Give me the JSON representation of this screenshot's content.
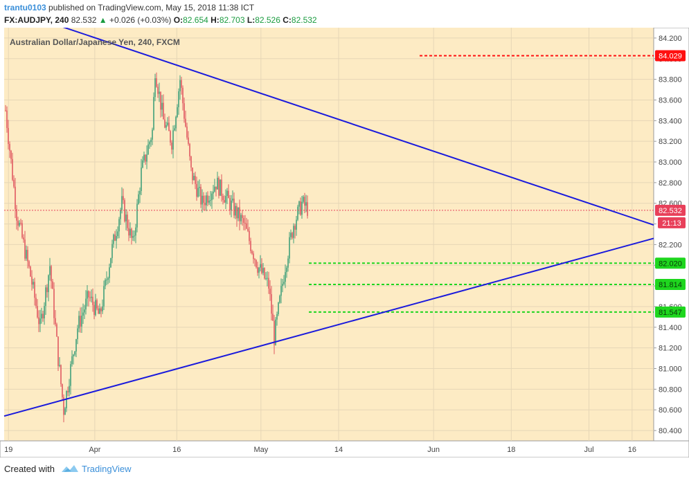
{
  "header": {
    "author": "trantu0103",
    "published_text": "published on TradingView.com, May 15, 2018 11:38 ICT",
    "symbol": "FX:AUDJPY, 240",
    "last": "82.532",
    "change": "+0.026 (+0.03%)",
    "o_label": "O:",
    "o_value": "82.654",
    "h_label": "H:",
    "h_value": "82.703",
    "l_label": "L:",
    "l_value": "82.526",
    "c_label": "C:",
    "c_value": "82.532"
  },
  "chart_data": {
    "type": "candlestick",
    "title": "Australian Dollar/Japanese Yen, 240, FXCM",
    "ylim": [
      80.3,
      84.3
    ],
    "y_ticks": [
      "80.400",
      "80.600",
      "80.800",
      "81.000",
      "81.200",
      "81.400",
      "81.600",
      "81.800",
      "82.000",
      "82.200",
      "82.400",
      "82.600",
      "82.800",
      "83.000",
      "83.200",
      "83.400",
      "83.600",
      "83.800",
      "84.000",
      "84.200"
    ],
    "x_ticks": [
      "19",
      "Apr",
      "16",
      "May",
      "14",
      "Jun",
      "18",
      "Jul",
      "16"
    ],
    "candle_path_points": [
      [
        0,
        83.5
      ],
      [
        8,
        82.5
      ],
      [
        18,
        81.9
      ],
      [
        25,
        81.4
      ],
      [
        32,
        82.0
      ],
      [
        38,
        81.1
      ],
      [
        42,
        80.6
      ],
      [
        52,
        81.4
      ],
      [
        60,
        81.7
      ],
      [
        68,
        81.5
      ],
      [
        76,
        82.1
      ],
      [
        84,
        82.6
      ],
      [
        92,
        82.2
      ],
      [
        98,
        82.9
      ],
      [
        106,
        83.3
      ],
      [
        108,
        83.9
      ],
      [
        114,
        83.4
      ],
      [
        120,
        83.2
      ],
      [
        126,
        83.8
      ],
      [
        134,
        82.9
      ],
      [
        142,
        82.6
      ],
      [
        152,
        82.8
      ],
      [
        162,
        82.6
      ],
      [
        172,
        82.4
      ],
      [
        182,
        82.0
      ],
      [
        190,
        81.8
      ],
      [
        194,
        81.3
      ],
      [
        202,
        82.0
      ],
      [
        208,
        82.4
      ],
      [
        214,
        82.6
      ],
      [
        218,
        82.55
      ]
    ],
    "series": [
      {
        "name": "current_price",
        "value": 82.532,
        "label": "82.532",
        "color": "#e8405a"
      },
      {
        "name": "countdown",
        "label": "21:13",
        "color": "#e8405a"
      },
      {
        "name": "resistance",
        "value": 84.029,
        "label": "84.029",
        "color": "#ff1010"
      },
      {
        "name": "support_1",
        "value": 82.02,
        "label": "82.020",
        "color": "#1ed61e"
      },
      {
        "name": "support_2",
        "value": 81.814,
        "label": "81.814",
        "color": "#1ed61e"
      },
      {
        "name": "support_3",
        "value": 81.547,
        "label": "81.547",
        "color": "#1ed61e"
      }
    ],
    "trendlines": [
      {
        "name": "upper",
        "points": [
          [
            11,
            84.42
          ],
          [
            301,
            82.39
          ]
        ]
      },
      {
        "name": "lower",
        "points": [
          [
            0,
            80.54
          ],
          [
            301,
            82.26
          ]
        ]
      }
    ],
    "colors": {
      "up": "#3fa07a",
      "down": "#e05860",
      "background": "#fdebc4",
      "trendline": "#1a1adc",
      "grid": "#e6d6b6"
    }
  },
  "footer": {
    "created_with": "Created with",
    "brand": "TradingView"
  }
}
